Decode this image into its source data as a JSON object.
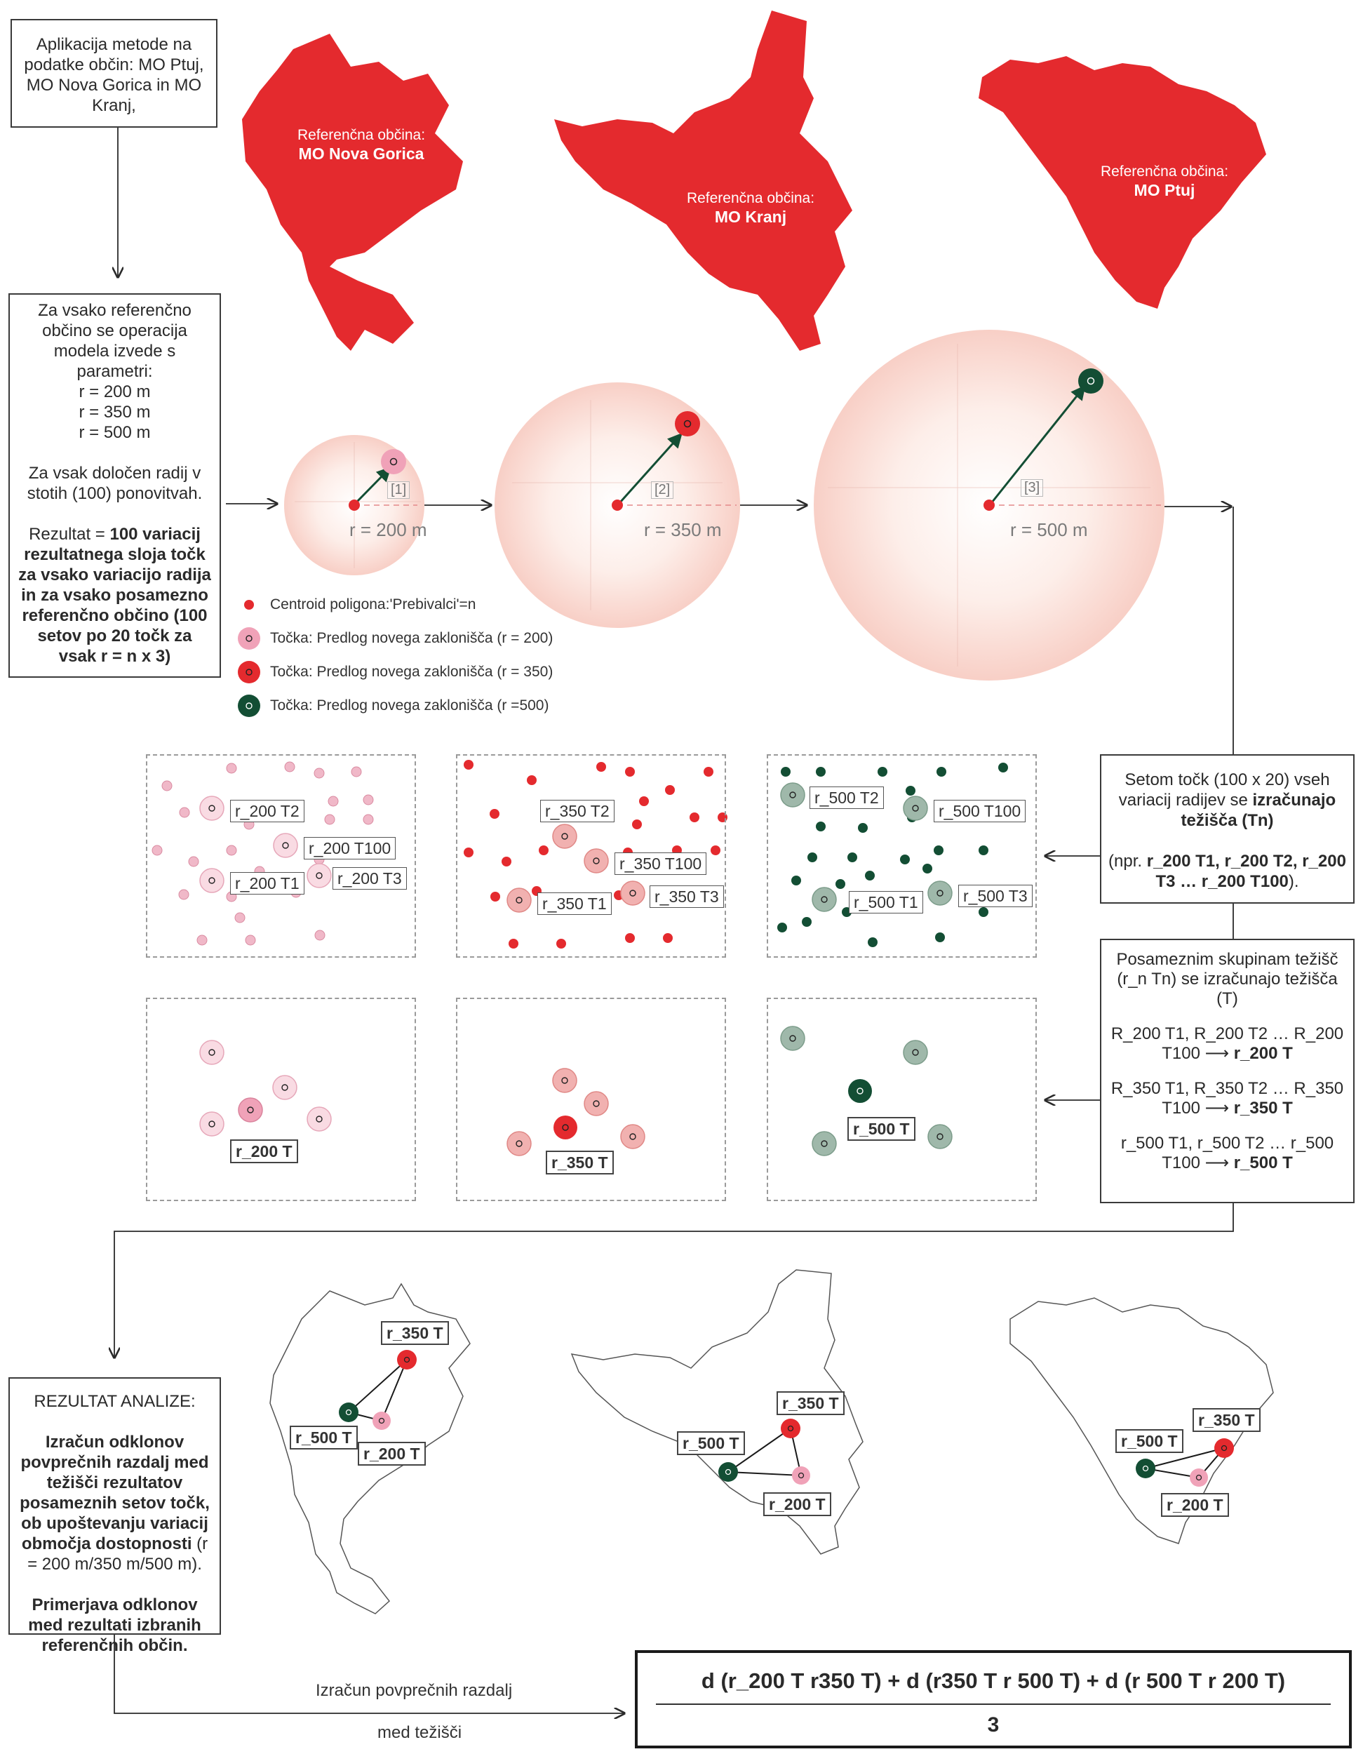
{
  "colors": {
    "red": "#e42a2e",
    "pink": "#f0a2b8",
    "pink_light": "#f9dbe3",
    "red_light": "#f1b1b0",
    "green": "#134e34",
    "green_light": "#9fb8aa",
    "circle_fill": "#fbe0da",
    "line": "#2a2a2a"
  },
  "top_box": {
    "text": "Aplikacija metode na podatke občin: MO Ptuj, MO Nova Gorica in MO Kranj,"
  },
  "maps": {
    "nova_gorica": {
      "line1": "Referenčna občina:",
      "line2": "MO Nova Gorica"
    },
    "kranj": {
      "line1": "Referenčna občina:",
      "line2": "MO Kranj"
    },
    "ptuj": {
      "line1": "Referenčna občina:",
      "line2": "MO Ptuj"
    }
  },
  "params_box": {
    "line1": "Za vsako referenčno občino se operacija modela izvede s parametri:",
    "r1": "r = 200 m",
    "r2": "r = 350 m",
    "r3": "r = 500 m",
    "line2": "Za vsak določen radij v stotih (100) ponovitvah.",
    "result_prefix": "Rezultat = ",
    "result_bold": "100 variacij rezultatnega sloja točk za vsako variacijo radija in za vsako posamezno referenčno občino (100 setov po 20 točk za vsak r = n x 3)"
  },
  "circles": [
    {
      "label": "r = 200 m",
      "tag": "[1]"
    },
    {
      "label": "r = 350 m",
      "tag": "[2]"
    },
    {
      "label": "r = 500 m",
      "tag": "[3]"
    }
  ],
  "legend": [
    {
      "text": "Centroid poligona:'Prebivalci'=n",
      "icon": "red-dot-icon"
    },
    {
      "text": "Točka: Predlog novega zaklonišča (r = 200)",
      "icon": "pink-point-icon"
    },
    {
      "text": "Točka: Predlog novega zaklonišča (r = 350)",
      "icon": "red-point-icon"
    },
    {
      "text": "Točka: Predlog novega zaklonišča (r =500)",
      "icon": "green-point-icon"
    }
  ],
  "centroid_box": {
    "line1": "Setom točk (100 x 20) vseh variacij radijev se ",
    "bold1": "izračunajo težišča (Tn)",
    "line2": "(npr. ",
    "bold2": "r_200 T1, r_200 T2, r_200 T3 … r_200 T100",
    "line3": ")."
  },
  "group_box": {
    "line1": "Posameznim skupinam težišč (r_n Tn) se izračunajo težišča (T)",
    "g1": "R_200 T1, R_200 T2 … R_200 T100",
    "g1r": "r_200 T",
    "g2": "R_350 T1, R_350 T2 … R_350 T100",
    "g2r": "r_350 T",
    "g3": "r_500 T1, r_500 T2 … r_500 T100",
    "g3r": "r_500 T",
    "arrow": "⟶"
  },
  "panel_labels": {
    "p1": [
      "r_200 T2",
      "r_200 T100",
      "r_200 T1",
      "r_200 T3"
    ],
    "p2": [
      "r_350 T2",
      "r_350 T100",
      "r_350 T1",
      "r_350 T3"
    ],
    "p3": [
      "r_500 T2",
      "r_500 T100",
      "r_500 T1",
      "r_500 T3"
    ],
    "q1": "r_200 T",
    "q2": "r_350 T",
    "q3": "r_500 T"
  },
  "bottom_labels": {
    "r350": "r_350 T",
    "r500": "r_500 T",
    "r200": "r_200 T"
  },
  "result_box": {
    "title": "REZULTAT ANALIZE:",
    "bold1": "Izračun odklonov povprečnih razdalj med težišči rezultatov posameznih setov točk, ob upoštevanju variacij območja dostopnosti",
    "normal": "(r = 200 m/350 m/500 m).",
    "bold2": "Primerjava odklonov med rezultati izbranih referenčnih občin."
  },
  "bottom_caption": {
    "line1": "Izračun povprečnih razdalj",
    "line2": "med težišči"
  },
  "formula": {
    "numerator": "d (r_200 T r350 T) + d (r350 T r 500 T) + d (r 500 T r 200 T)",
    "denominator": "3"
  }
}
